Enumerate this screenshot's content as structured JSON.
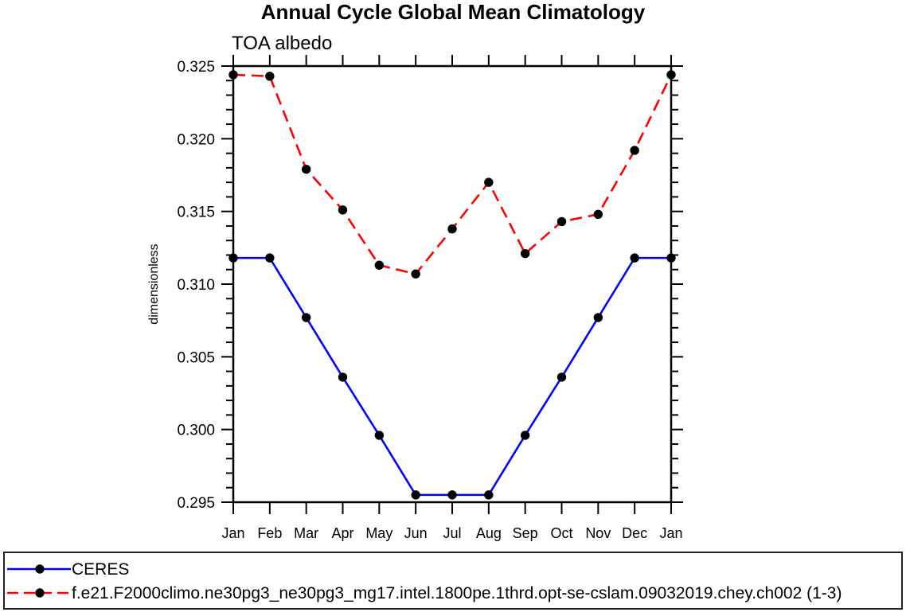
{
  "header": {
    "title": "Annual Cycle Global Mean Climatology",
    "subtitle": "TOA albedo"
  },
  "colors": {
    "axis": "#000000",
    "marker": "#000000",
    "background": "#ffffff",
    "legend_border": "#222222"
  },
  "chart_data": {
    "type": "line",
    "title": "Annual Cycle Global Mean Climatology",
    "subtitle": "TOA albedo",
    "ylabel": "dimensionless",
    "xlabel": "",
    "categories": [
      "Jan",
      "Feb",
      "Mar",
      "Apr",
      "May",
      "Jun",
      "Jul",
      "Aug",
      "Sep",
      "Oct",
      "Nov",
      "Dec",
      "Jan"
    ],
    "ylim": [
      0.295,
      0.325
    ],
    "y_major_step": 0.005,
    "y_minor_step": 0.001,
    "y_tick_labels": [
      "0.295",
      "0.300",
      "0.305",
      "0.310",
      "0.315",
      "0.320",
      "0.325"
    ],
    "grid": false,
    "legend_position": "bottom",
    "series": [
      {
        "name": "CERES",
        "color": "#0000ff",
        "line_style": "solid",
        "marker": "circle",
        "marker_color": "#000000",
        "values": [
          0.3118,
          0.3118,
          0.3077,
          0.3036,
          0.2996,
          0.2955,
          0.2955,
          0.2955,
          0.2996,
          0.3036,
          0.3077,
          0.3118,
          0.3118
        ]
      },
      {
        "name": "f.e21.F2000climo.ne30pg3_ne30pg3_mg17.intel.1800pe.1thrd.opt-se-cslam.09032019.chey.ch002 (1-3)",
        "color": "#ff0000",
        "line_style": "dashed",
        "marker": "circle",
        "marker_color": "#000000",
        "values": [
          0.3244,
          0.3243,
          0.3179,
          0.3151,
          0.3113,
          0.3107,
          0.3138,
          0.317,
          0.3121,
          0.3143,
          0.3148,
          0.3192,
          0.3244
        ]
      }
    ]
  }
}
